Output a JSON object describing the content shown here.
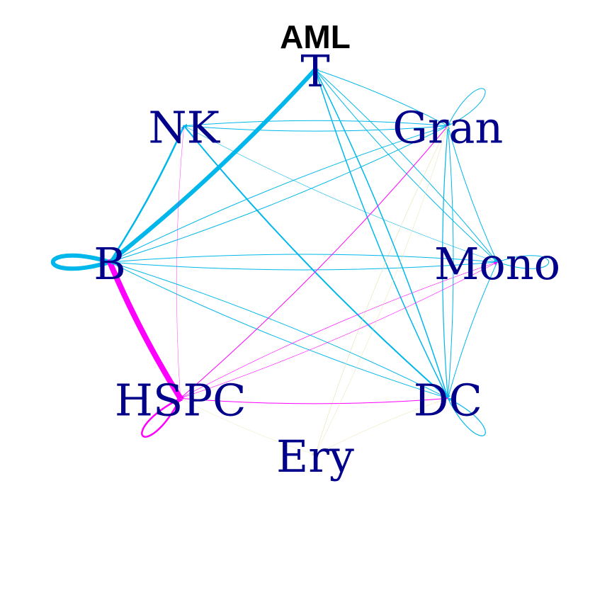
{
  "title": "AML",
  "colors": {
    "label": "#00008B",
    "cyan": "#00B7EB",
    "magenta": "#FF00FF",
    "pale_yellow": "#E8E0A8",
    "title": "#000000"
  },
  "chart_data": {
    "type": "network",
    "title": "AML",
    "layout": "circle",
    "nodes": [
      "T",
      "Gran",
      "Mono",
      "DC",
      "Ery",
      "HSPC",
      "B",
      "NK"
    ],
    "edges": [
      {
        "from": "B",
        "to": "T",
        "color": "cyan",
        "weight": 6
      },
      {
        "from": "B",
        "to": "B",
        "color": "cyan",
        "weight": 6
      },
      {
        "from": "B",
        "to": "HSPC",
        "color": "magenta",
        "weight": 8
      },
      {
        "from": "B",
        "to": "NK",
        "color": "cyan",
        "weight": 2.5
      },
      {
        "from": "B",
        "to": "Gran",
        "color": "cyan",
        "weight": 1
      },
      {
        "from": "B",
        "to": "Mono",
        "color": "cyan",
        "weight": 1
      },
      {
        "from": "B",
        "to": "DC",
        "color": "cyan",
        "weight": 1
      },
      {
        "from": "NK",
        "to": "DC",
        "color": "cyan",
        "weight": 2
      },
      {
        "from": "NK",
        "to": "Gran",
        "color": "cyan",
        "weight": 1
      },
      {
        "from": "NK",
        "to": "Mono",
        "color": "cyan",
        "weight": 0.6
      },
      {
        "from": "NK",
        "to": "HSPC",
        "color": "magenta",
        "weight": 0.4
      },
      {
        "from": "T",
        "to": "DC",
        "color": "cyan",
        "weight": 1.5
      },
      {
        "from": "T",
        "to": "Mono",
        "color": "cyan",
        "weight": 1
      },
      {
        "from": "Gran",
        "to": "T",
        "color": "cyan",
        "weight": 1
      },
      {
        "from": "Gran",
        "to": "Gran",
        "color": "cyan",
        "weight": 1
      },
      {
        "from": "Gran",
        "to": "Mono",
        "color": "cyan",
        "weight": 1
      },
      {
        "from": "Gran",
        "to": "DC",
        "color": "cyan",
        "weight": 1.2
      },
      {
        "from": "Gran",
        "to": "NK",
        "color": "cyan",
        "weight": 1
      },
      {
        "from": "Gran",
        "to": "B",
        "color": "cyan",
        "weight": 1
      },
      {
        "from": "Gran",
        "to": "Ery",
        "color": "pale_yellow",
        "weight": 0.6
      },
      {
        "from": "Mono",
        "to": "T",
        "color": "cyan",
        "weight": 1
      },
      {
        "from": "Mono",
        "to": "Mono",
        "color": "cyan",
        "weight": 1
      },
      {
        "from": "Mono",
        "to": "DC",
        "color": "cyan",
        "weight": 1
      },
      {
        "from": "Mono",
        "to": "B",
        "color": "cyan",
        "weight": 1
      },
      {
        "from": "Mono",
        "to": "HSPC",
        "color": "magenta",
        "weight": 0.6
      },
      {
        "from": "DC",
        "to": "DC",
        "color": "cyan",
        "weight": 1.2
      },
      {
        "from": "DC",
        "to": "Gran",
        "color": "cyan",
        "weight": 1
      },
      {
        "from": "DC",
        "to": "T",
        "color": "cyan",
        "weight": 1.5
      },
      {
        "from": "DC",
        "to": "B",
        "color": "cyan",
        "weight": 1
      },
      {
        "from": "DC",
        "to": "Ery",
        "color": "pale_yellow",
        "weight": 0.5
      },
      {
        "from": "HSPC",
        "to": "HSPC",
        "color": "magenta",
        "weight": 2.5
      },
      {
        "from": "HSPC",
        "to": "DC",
        "color": "magenta",
        "weight": 1
      },
      {
        "from": "HSPC",
        "to": "Gran",
        "color": "magenta",
        "weight": 1
      },
      {
        "from": "HSPC",
        "to": "Mono",
        "color": "magenta",
        "weight": 0.6
      },
      {
        "from": "HSPC",
        "to": "Ery",
        "color": "pale_yellow",
        "weight": 0.4
      },
      {
        "from": "Ery",
        "to": "Gran",
        "color": "pale_yellow",
        "weight": 0.5
      }
    ]
  }
}
